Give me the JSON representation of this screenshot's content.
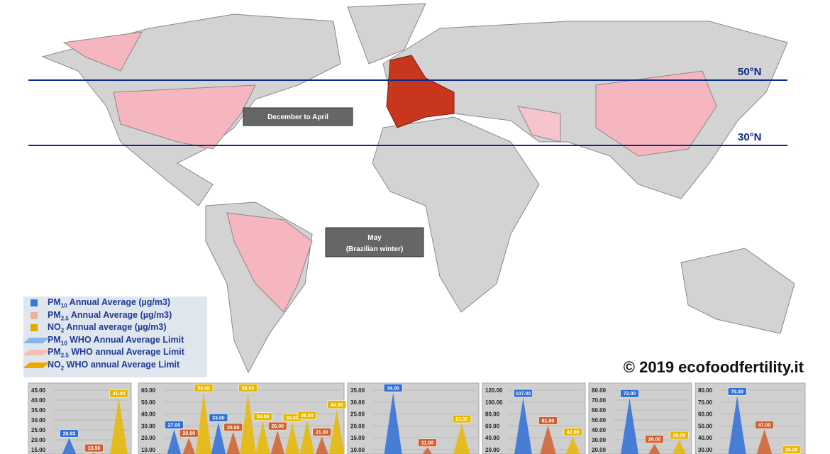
{
  "map": {
    "parallels": [
      {
        "label": "50°N"
      },
      {
        "label": "30°N"
      }
    ],
    "periods": [
      {
        "lines": [
          "December  to  April"
        ]
      },
      {
        "lines": [
          "May",
          "(Brazilian winter)"
        ]
      }
    ],
    "copyright": "© 2019 ecofoodfertility.it"
  },
  "legend": [
    {
      "main": "PM",
      "sub": "10",
      "rest": " Annual Average (µg/m3)",
      "color": "#3a78d8"
    },
    {
      "main": "PM",
      "sub": "2.5",
      "rest": " Annual Average (µg/m3)",
      "color": "#f0b0a0"
    },
    {
      "main": "NO",
      "sub": "2",
      "rest": " Annual average (µg/m3)",
      "color": "#e0a800"
    },
    {
      "main": "PM",
      "sub": "10",
      "rest": " WHO Annual Average Limit",
      "color": "#8ab4ec"
    },
    {
      "main": "PM",
      "sub": "2.5",
      "rest": " WHO annual Average Limit",
      "color": "#f4c0b4"
    },
    {
      "main": "NO",
      "sub": "2",
      "rest": " WHO annual Average Limit",
      "color": "#f0a800"
    }
  ],
  "panels": [
    {
      "yticks": [
        {
          "value": 45,
          "label": "45.00"
        },
        {
          "value": 40,
          "label": "40.00"
        },
        {
          "value": 35,
          "label": "35.00"
        },
        {
          "value": 30,
          "label": "30.00"
        },
        {
          "value": 25,
          "label": "25.00"
        },
        {
          "value": 20,
          "label": "20.00"
        },
        {
          "value": 15,
          "label": "15.00"
        }
      ],
      "values": [
        20.93,
        13.56,
        41
      ],
      "value_labels": [
        "20.93",
        "13.56",
        "41.00"
      ],
      "colors": [
        "#2f6fd6",
        "#d06030",
        "#e8b800"
      ]
    },
    {
      "yticks": [
        {
          "value": 60,
          "label": "60.00"
        },
        {
          "value": 50,
          "label": "50.00"
        },
        {
          "value": 40,
          "label": "40.00"
        },
        {
          "value": 30,
          "label": "30.00"
        },
        {
          "value": 20,
          "label": "20.00"
        },
        {
          "value": 10,
          "label": "10.00"
        }
      ],
      "values": [
        27,
        20,
        58,
        33,
        25,
        58,
        34,
        26,
        33,
        35,
        21,
        44
      ],
      "value_labels": [
        "27.00",
        "20.00",
        "58.00",
        "33.00",
        "25.00",
        "58.00",
        "34.00",
        "26.00",
        "33.00",
        "35.00",
        "21.00",
        "44.00"
      ],
      "colors": [
        "#2f6fd6",
        "#d06030",
        "#e8b800",
        "#2f6fd6",
        "#d06030",
        "#e8b800",
        "#e8b800",
        "#d06030",
        "#e8b800",
        "#e8b800",
        "#d06030",
        "#e8b800"
      ]
    },
    {
      "yticks": [
        {
          "value": 35,
          "label": "35.00"
        },
        {
          "value": 30,
          "label": "30.00"
        },
        {
          "value": 25,
          "label": "25.00"
        },
        {
          "value": 20,
          "label": "20.00"
        },
        {
          "value": 15,
          "label": "15.00"
        },
        {
          "value": 10,
          "label": "10.00"
        }
      ],
      "values": [
        34,
        11,
        21
      ],
      "value_labels": [
        "34.00",
        "11.00",
        "21.00"
      ],
      "colors": [
        "#2f6fd6",
        "#d06030",
        "#e8b800"
      ]
    },
    {
      "yticks": [
        {
          "value": 120,
          "label": "120.00"
        },
        {
          "value": 100,
          "label": "100.00"
        },
        {
          "value": 80,
          "label": "80.00"
        },
        {
          "value": 60,
          "label": "60.00"
        },
        {
          "value": 40,
          "label": "40.00"
        },
        {
          "value": 20,
          "label": "20.00"
        }
      ],
      "values": [
        107,
        61,
        42
      ],
      "value_labels": [
        "107.00",
        "61.00",
        "42.00"
      ],
      "colors": [
        "#2f6fd6",
        "#d06030",
        "#e8b800"
      ]
    },
    {
      "yticks": [
        {
          "value": 80,
          "label": "80.00"
        },
        {
          "value": 70,
          "label": "70.00"
        },
        {
          "value": 60,
          "label": "60.00"
        },
        {
          "value": 50,
          "label": "50.00"
        },
        {
          "value": 40,
          "label": "40.00"
        },
        {
          "value": 30,
          "label": "30.00"
        },
        {
          "value": 20,
          "label": "20.00"
        }
      ],
      "values": [
        72,
        26,
        30
      ],
      "value_labels": [
        "72.00",
        "26.00",
        "30.00"
      ],
      "colors": [
        "#2f6fd6",
        "#d06030",
        "#e8b800"
      ]
    },
    {
      "yticks": [
        {
          "value": 80,
          "label": "80.00"
        },
        {
          "value": 70,
          "label": "70.00"
        },
        {
          "value": 60,
          "label": "60.00"
        },
        {
          "value": 50,
          "label": "50.00"
        },
        {
          "value": 40,
          "label": "40.00"
        },
        {
          "value": 30,
          "label": "30.00"
        }
      ],
      "values": [
        75,
        47,
        26
      ],
      "value_labels": [
        "75.00",
        "47.00",
        "26.00"
      ],
      "colors": [
        "#2f6fd6",
        "#d06030",
        "#e8b800"
      ]
    }
  ]
}
